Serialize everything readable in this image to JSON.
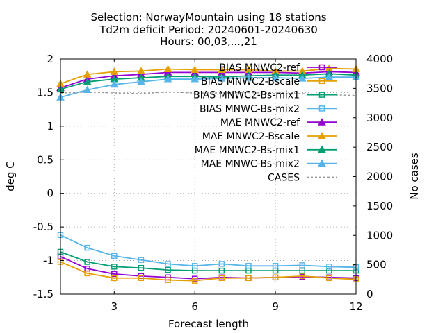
{
  "chart_data": {
    "type": "line",
    "title": [
      "Selection: NorwayMountain using    18 stations",
      "Td2m deficit   Period: 20240601-20240630",
      "Hours: 00,03,...,21"
    ],
    "xlabel": "Forecast length",
    "ylabel": "deg C",
    "y2label": "No cases",
    "xlim": [
      1,
      12
    ],
    "ylim": [
      -1.5,
      2
    ],
    "y2lim": [
      0,
      4000
    ],
    "xticks": [
      3,
      6,
      9,
      12
    ],
    "yticks": [
      -1.5,
      -1,
      -0.5,
      0,
      0.5,
      1,
      1.5,
      2
    ],
    "y2ticks": [
      0,
      500,
      1000,
      1500,
      2000,
      2500,
      3000,
      3500,
      4000
    ],
    "grid": true,
    "legend_position": "top-right",
    "x": [
      1,
      2,
      3,
      4,
      5,
      6,
      7,
      8,
      9,
      10,
      11,
      12
    ],
    "series": [
      {
        "name": "BIAS MNWC2-ref",
        "color": "#9400d3",
        "marker": "square-open",
        "dash": "solid",
        "axis": "y",
        "values": [
          -0.94,
          -1.12,
          -1.2,
          -1.23,
          -1.25,
          -1.27,
          -1.25,
          -1.26,
          -1.25,
          -1.24,
          -1.25,
          -1.26
        ]
      },
      {
        "name": "BIAS MNWC2-Bscale",
        "color": "#e69f00",
        "marker": "square-open",
        "dash": "solid",
        "axis": "y",
        "values": [
          -1.02,
          -1.19,
          -1.26,
          -1.26,
          -1.29,
          -1.3,
          -1.26,
          -1.26,
          -1.25,
          -1.23,
          -1.26,
          -1.28
        ]
      },
      {
        "name": "BIAS MNWC2-Bs-mix1",
        "color": "#009e73",
        "marker": "square-open",
        "dash": "solid",
        "axis": "y",
        "values": [
          -0.87,
          -1.02,
          -1.09,
          -1.11,
          -1.14,
          -1.15,
          -1.15,
          -1.15,
          -1.15,
          -1.15,
          -1.15,
          -1.15
        ]
      },
      {
        "name": "BIAS MNWC-Bs-mix2",
        "color": "#56b4e9",
        "marker": "square-open",
        "dash": "solid",
        "axis": "y",
        "values": [
          -0.62,
          -0.81,
          -0.93,
          -0.99,
          -1.05,
          -1.08,
          -1.05,
          -1.08,
          -1.08,
          -1.07,
          -1.09,
          -1.1
        ]
      },
      {
        "name": "MAE MNWC2-ref",
        "color": "#9400d3",
        "marker": "triangle",
        "dash": "solid",
        "axis": "y",
        "values": [
          1.57,
          1.7,
          1.75,
          1.77,
          1.8,
          1.8,
          1.8,
          1.8,
          1.8,
          1.79,
          1.81,
          1.8
        ]
      },
      {
        "name": "MAE MNWC2-Bscale",
        "color": "#e69f00",
        "marker": "triangle",
        "dash": "solid",
        "axis": "y",
        "values": [
          1.63,
          1.77,
          1.81,
          1.82,
          1.85,
          1.84,
          1.84,
          1.84,
          1.82,
          1.82,
          1.86,
          1.85
        ]
      },
      {
        "name": "MAE MNWC2-Bs-mix1",
        "color": "#009e73",
        "marker": "triangle",
        "dash": "solid",
        "axis": "y",
        "values": [
          1.55,
          1.66,
          1.7,
          1.72,
          1.74,
          1.74,
          1.73,
          1.75,
          1.76,
          1.76,
          1.78,
          1.76
        ]
      },
      {
        "name": "MAE MNWC-Bs-mix2",
        "color": "#56b4e9",
        "marker": "triangle",
        "dash": "solid",
        "axis": "y",
        "values": [
          1.43,
          1.54,
          1.62,
          1.66,
          1.7,
          1.7,
          1.71,
          1.72,
          1.72,
          1.71,
          1.73,
          1.73
        ]
      },
      {
        "name": "CASES",
        "color": "#999999",
        "marker": "none",
        "dash": "dashed",
        "axis": "y2",
        "values": [
          3420,
          3440,
          3420,
          3410,
          3440,
          3420,
          3420,
          3430,
          3410,
          3410,
          3390,
          3380
        ]
      }
    ]
  }
}
